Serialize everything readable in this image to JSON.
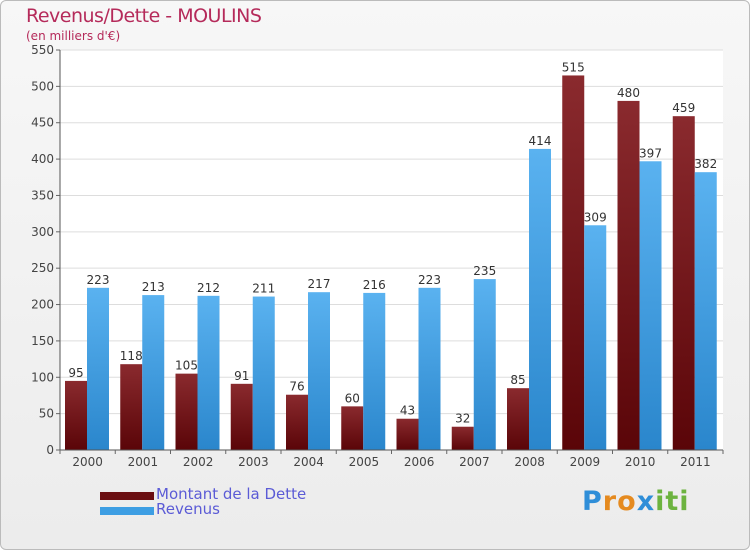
{
  "header": {
    "title": "Revenus/Dette - MOULINS",
    "subtitle": "(en milliers d'€)"
  },
  "chart_data": {
    "type": "bar",
    "categories": [
      "2000",
      "2001",
      "2002",
      "2003",
      "2004",
      "2005",
      "2006",
      "2007",
      "2008",
      "2009",
      "2010",
      "2011"
    ],
    "series": [
      {
        "name": "Montant de la Dette",
        "color": "#7a1a1e",
        "values": [
          95,
          118,
          105,
          91,
          76,
          60,
          43,
          32,
          85,
          515,
          480,
          459
        ]
      },
      {
        "name": "Revenus",
        "color": "#3d9ee3",
        "values": [
          223,
          213,
          212,
          211,
          217,
          216,
          223,
          235,
          414,
          309,
          397,
          382
        ]
      }
    ],
    "ylim": [
      0,
      550
    ],
    "yticks": [
      "0",
      "50",
      "100",
      "150",
      "200",
      "250",
      "300",
      "350",
      "400",
      "450",
      "500",
      "550"
    ],
    "grid": true,
    "legend_position": "bottom-left"
  },
  "legend": [
    {
      "label": "Montant de la Dette",
      "color": "#6b0f12"
    },
    {
      "label": "Revenus",
      "color": "#3d9ee3"
    }
  ],
  "logo": {
    "letters": [
      "P",
      "r",
      "o",
      "x",
      "i",
      "t",
      "i"
    ],
    "colors": [
      "#2f8ed8",
      "#e58a1f",
      "#e58a1f",
      "#2f8ed8",
      "#6cb33f",
      "#6cb33f",
      "#6cb33f"
    ]
  }
}
